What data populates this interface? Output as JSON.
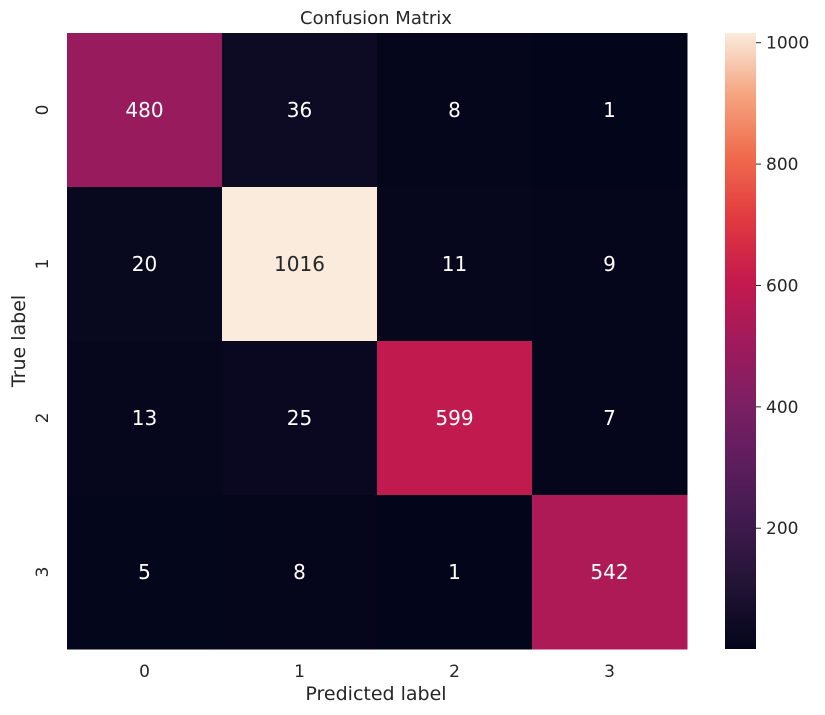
{
  "chart_data": {
    "type": "heatmap",
    "title": "Confusion Matrix",
    "xlabel": "Predicted label",
    "ylabel": "True label",
    "x_categories": [
      "0",
      "1",
      "2",
      "3"
    ],
    "y_categories": [
      "0",
      "1",
      "2",
      "3"
    ],
    "values": [
      [
        480,
        36,
        8,
        1
      ],
      [
        20,
        1016,
        11,
        9
      ],
      [
        13,
        25,
        599,
        7
      ],
      [
        5,
        8,
        1,
        542
      ]
    ],
    "colormap": "rocket",
    "colorbar": {
      "range": [
        1,
        1016
      ],
      "ticks": [
        "200",
        "400",
        "600",
        "800",
        "1000"
      ],
      "tick_values": [
        200,
        400,
        600,
        800,
        1000
      ]
    },
    "grid": false,
    "legend": "colorbar-right"
  }
}
